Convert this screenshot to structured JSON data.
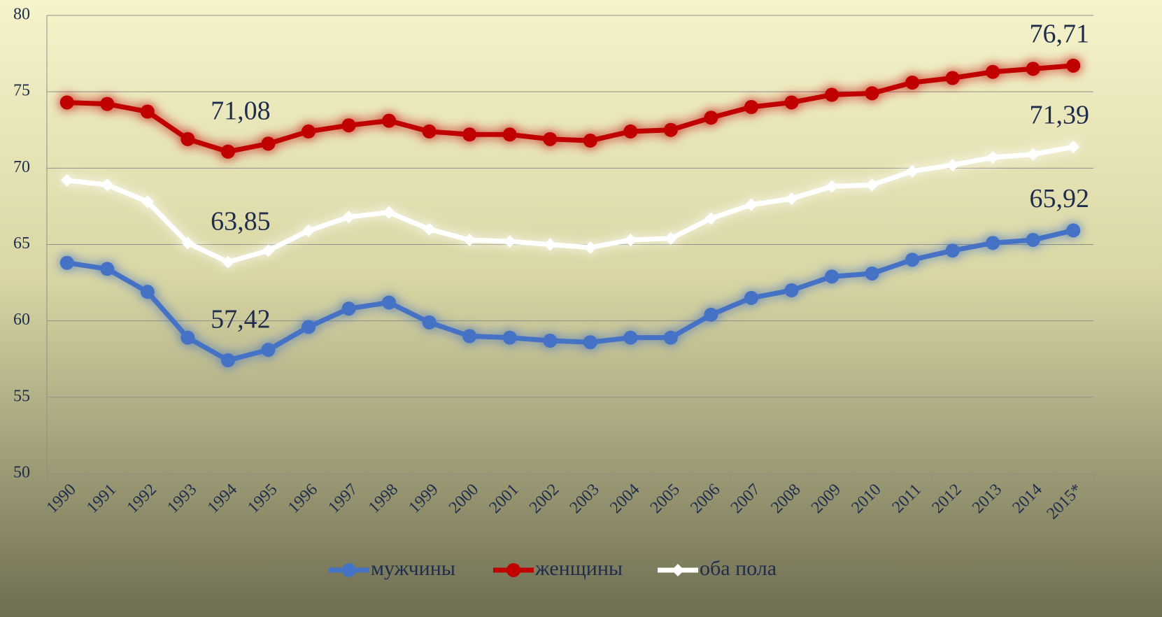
{
  "chart_data": {
    "type": "line",
    "categories": [
      "1990",
      "1991",
      "1992",
      "1993",
      "1994",
      "1995",
      "1996",
      "1997",
      "1998",
      "1999",
      "2000",
      "2001",
      "2002",
      "2003",
      "2004",
      "2005",
      "2006",
      "2007",
      "2008",
      "2009",
      "2010",
      "2011",
      "2012",
      "2013",
      "2014",
      "2015*"
    ],
    "series": [
      {
        "name": "мужчины",
        "color": "#4472c4",
        "marker": "circle",
        "values": [
          63.8,
          63.4,
          61.9,
          58.9,
          57.42,
          58.1,
          59.6,
          60.8,
          61.2,
          59.9,
          59.0,
          58.9,
          58.7,
          58.6,
          58.9,
          58.9,
          60.4,
          61.5,
          62.0,
          62.9,
          63.1,
          64.0,
          64.6,
          65.1,
          65.3,
          65.92
        ],
        "value_labels": [
          null,
          null,
          null,
          null,
          "57,42",
          null,
          null,
          null,
          null,
          null,
          null,
          null,
          null,
          null,
          null,
          null,
          null,
          null,
          null,
          null,
          null,
          null,
          null,
          null,
          null,
          "65,92"
        ]
      },
      {
        "name": "женщины",
        "color": "#c00000",
        "marker": "circle",
        "values": [
          74.3,
          74.2,
          73.7,
          71.9,
          71.08,
          71.6,
          72.4,
          72.8,
          73.1,
          72.4,
          72.2,
          72.2,
          71.9,
          71.8,
          72.4,
          72.5,
          73.3,
          74.0,
          74.3,
          74.8,
          74.9,
          75.6,
          75.9,
          76.3,
          76.5,
          76.71
        ],
        "value_labels": [
          null,
          null,
          null,
          null,
          "71,08",
          null,
          null,
          null,
          null,
          null,
          null,
          null,
          null,
          null,
          null,
          null,
          null,
          null,
          null,
          null,
          null,
          null,
          null,
          null,
          null,
          "76,71"
        ]
      },
      {
        "name": "оба пола",
        "color": "#ffffff",
        "marker": "diamond",
        "values": [
          69.2,
          68.9,
          67.8,
          65.1,
          63.85,
          64.6,
          65.9,
          66.8,
          67.1,
          66.0,
          65.3,
          65.2,
          65.0,
          64.8,
          65.3,
          65.4,
          66.7,
          67.6,
          68.0,
          68.8,
          68.9,
          69.8,
          70.2,
          70.7,
          70.9,
          71.39
        ],
        "value_labels": [
          null,
          null,
          null,
          null,
          "63,85",
          null,
          null,
          null,
          null,
          null,
          null,
          null,
          null,
          null,
          null,
          null,
          null,
          null,
          null,
          null,
          null,
          null,
          null,
          null,
          null,
          "71,39"
        ]
      }
    ],
    "ylim": [
      50,
      80
    ],
    "yticks": [
      50,
      55,
      60,
      65,
      70,
      75,
      80
    ],
    "grid": true,
    "legend": "bottom"
  }
}
